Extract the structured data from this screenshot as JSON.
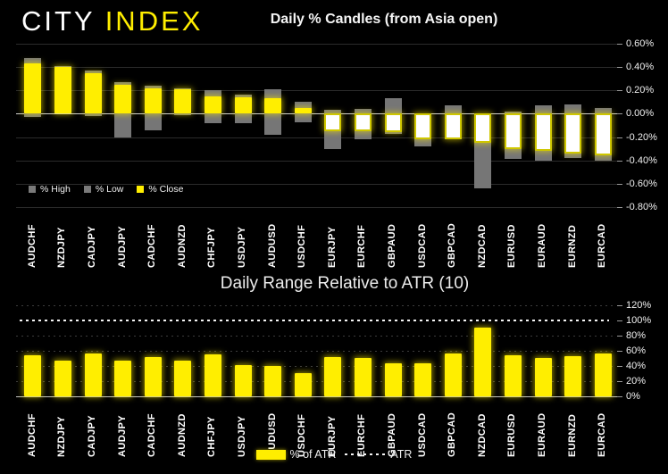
{
  "logo": {
    "brand_first": "CITY",
    "brand_second": "INDEX"
  },
  "colors": {
    "background": "#000000",
    "accent_yellow": "#ffee00",
    "bar_gray": "#7a7a7a",
    "close_negative_fill": "#ffffff",
    "text": "#ffffff"
  },
  "chart_data": [
    {
      "id": "daily-percent-candles",
      "type": "bar",
      "subtype": "high-low-close-candles",
      "title": "Daily % Candles (from Asia open)",
      "categories": [
        "AUDCHF",
        "NZDJPY",
        "CADJPY",
        "AUDJPY",
        "CADCHF",
        "AUDNZD",
        "CHFJPY",
        "USDJPY",
        "AUDUSD",
        "USDCHF",
        "EURJPY",
        "EURCHF",
        "GBPAUD",
        "USDCAD",
        "GBPCAD",
        "NZDCAD",
        "EURUSD",
        "EURAUD",
        "EURNZD",
        "EURCAD"
      ],
      "series": [
        {
          "name": "% High",
          "color": "#7a7a7a",
          "values": [
            0.48,
            0.41,
            0.37,
            0.27,
            0.24,
            0.22,
            0.2,
            0.16,
            0.21,
            0.1,
            0.03,
            0.04,
            0.13,
            0.0,
            0.07,
            0.0,
            0.02,
            0.07,
            0.08,
            0.05
          ]
        },
        {
          "name": "% Low",
          "color": "#7a7a7a",
          "values": [
            -0.03,
            0.0,
            -0.02,
            -0.2,
            -0.14,
            -0.01,
            -0.08,
            -0.08,
            -0.18,
            -0.07,
            -0.3,
            -0.22,
            -0.17,
            -0.28,
            -0.22,
            -0.64,
            -0.39,
            -0.4,
            -0.38,
            -0.4
          ]
        },
        {
          "name": "% Close",
          "color_positive": "#ffee00",
          "color_negative": "#ffffff",
          "values": [
            0.43,
            0.4,
            0.35,
            0.25,
            0.22,
            0.21,
            0.15,
            0.14,
            0.13,
            0.05,
            -0.15,
            -0.15,
            -0.16,
            -0.22,
            -0.22,
            -0.25,
            -0.3,
            -0.32,
            -0.34,
            -0.36
          ]
        }
      ],
      "ylim": [
        -0.8,
        0.6
      ],
      "yticks": [
        "0.60%",
        "0.40%",
        "0.20%",
        "0.00%",
        "-0.20%",
        "-0.40%",
        "-0.60%",
        "-0.80%"
      ],
      "ytick_values": [
        0.6,
        0.4,
        0.2,
        0.0,
        -0.2,
        -0.4,
        -0.6,
        -0.8
      ],
      "grid": true,
      "zero_line": true,
      "legend_position": "bottom-left"
    },
    {
      "id": "daily-range-relative-to-atr",
      "type": "bar",
      "title": "Daily Range Relative to ATR (10)",
      "categories": [
        "AUDCHF",
        "NZDJPY",
        "CADJPY",
        "AUDJPY",
        "CADCHF",
        "AUDNZD",
        "CHFJPY",
        "USDJPY",
        "AUDUSD",
        "USDCHF",
        "EURJPY",
        "EURCHF",
        "GBPAUD",
        "USDCAD",
        "GBPCAD",
        "NZDCAD",
        "EURUSD",
        "EURAUD",
        "EURNZD",
        "EURCAD"
      ],
      "series": [
        {
          "name": "% of ATR",
          "color": "#ffee00",
          "values": [
            54,
            47,
            56,
            47,
            52,
            47,
            55,
            41,
            40,
            31,
            52,
            51,
            44,
            43,
            56,
            91,
            54,
            51,
            53,
            57
          ]
        }
      ],
      "reference_line": {
        "name": "ATR",
        "value": 100,
        "style": "dotted",
        "color": "#ffffff"
      },
      "ylim": [
        0,
        120
      ],
      "yticks": [
        "120%",
        "100%",
        "80%",
        "60%",
        "40%",
        "20%",
        "0%"
      ],
      "ytick_values": [
        120,
        100,
        80,
        60,
        40,
        20,
        0
      ],
      "grid": "dotted",
      "legend_position": "bottom-center"
    }
  ]
}
